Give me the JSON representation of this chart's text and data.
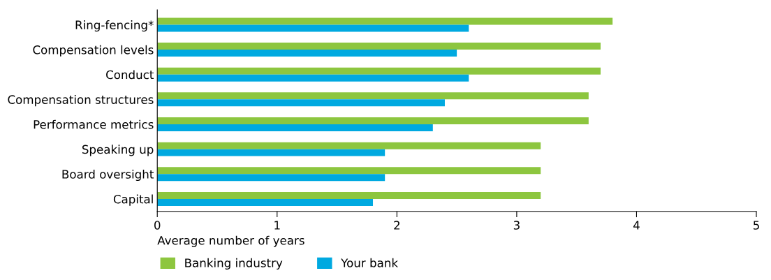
{
  "chart_data": {
    "type": "bar",
    "orientation": "horizontal",
    "xlabel": "Average number of years",
    "categories": [
      "Ring-fencing*",
      "Compensation levels",
      "Conduct",
      "Compensation structures",
      "Performance metrics",
      "Speaking up",
      "Board oversight",
      "Capital"
    ],
    "series": [
      {
        "name": "Banking industry",
        "color": "#8dc63f",
        "values": [
          3.8,
          3.7,
          3.7,
          3.6,
          3.6,
          3.2,
          3.2,
          3.2
        ]
      },
      {
        "name": "Your bank",
        "color": "#00a9e0",
        "values": [
          2.6,
          2.5,
          2.6,
          2.4,
          2.3,
          1.9,
          1.9,
          1.8
        ]
      }
    ],
    "xlim": [
      0,
      5
    ],
    "xticks": [
      0,
      1,
      2,
      3,
      4,
      5
    ],
    "grid": false,
    "legend": "bottom left"
  }
}
